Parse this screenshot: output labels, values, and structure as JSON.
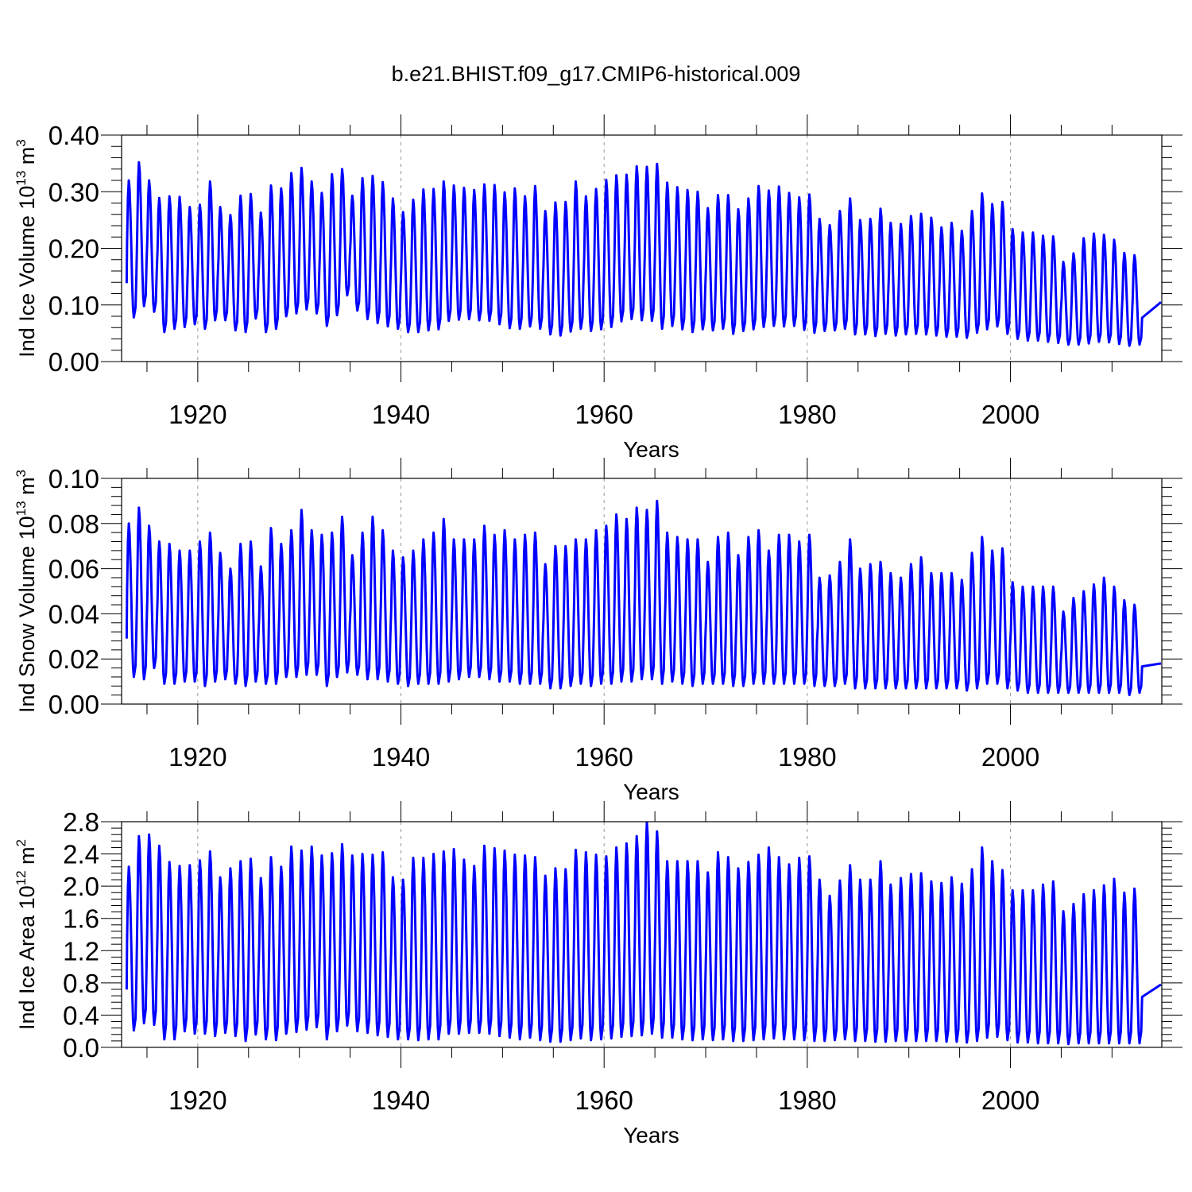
{
  "title": "b.e21.BHIST.f09_g17.CMIP6-historical.009",
  "series_color": "#0000ff",
  "chart_data": [
    {
      "type": "line",
      "title": "b.e21.BHIST.f09_g17.CMIP6-historical.009",
      "xlabel": "Years",
      "ylabel": {
        "prefix": "Ind Ice Volume 10",
        "exponent": "13",
        "unit": " m",
        "unit_exponent": "3"
      },
      "xlim": [
        1912.5,
        2014.9
      ],
      "ylim": [
        0.0,
        0.4
      ],
      "yticks": [
        "0.00",
        "0.10",
        "0.20",
        "0.30",
        "0.40"
      ],
      "xticks": [
        "1920",
        "1940",
        "1960",
        "1980",
        "2000"
      ],
      "xtick_values": [
        1920,
        1940,
        1960,
        1980,
        2000
      ],
      "grid": "dashed vertical at major x ticks",
      "series": [
        {
          "name": "Ind Ice Volume",
          "x_start": 1913,
          "step": "monthly, annual cycle (max ~Mar, min ~Sep)",
          "annual_max": [
            0.32,
            0.352,
            0.32,
            0.289,
            0.292,
            0.291,
            0.273,
            0.277,
            0.318,
            0.273,
            0.259,
            0.293,
            0.296,
            0.263,
            0.311,
            0.306,
            0.333,
            0.342,
            0.318,
            0.298,
            0.331,
            0.34,
            0.293,
            0.324,
            0.328,
            0.317,
            0.288,
            0.264,
            0.286,
            0.304,
            0.305,
            0.318,
            0.311,
            0.307,
            0.303,
            0.313,
            0.312,
            0.299,
            0.306,
            0.292,
            0.31,
            0.266,
            0.281,
            0.282,
            0.318,
            0.292,
            0.305,
            0.321,
            0.329,
            0.33,
            0.345,
            0.344,
            0.349,
            0.316,
            0.308,
            0.303,
            0.3,
            0.271,
            0.294,
            0.294,
            0.269,
            0.288,
            0.31,
            0.302,
            0.309,
            0.298,
            0.29,
            0.295,
            0.252,
            0.241,
            0.266,
            0.288,
            0.25,
            0.252,
            0.27,
            0.245,
            0.243,
            0.257,
            0.261,
            0.254,
            0.237,
            0.245,
            0.231,
            0.266,
            0.297,
            0.278,
            0.282,
            0.234,
            0.228,
            0.228,
            0.222,
            0.221,
            0.176,
            0.191,
            0.218,
            0.226,
            0.224,
            0.215,
            0.192,
            0.188
          ],
          "annual_min": [
            0.078,
            0.098,
            0.088,
            0.052,
            0.058,
            0.061,
            0.066,
            0.058,
            0.073,
            0.073,
            0.055,
            0.052,
            0.076,
            0.052,
            0.058,
            0.08,
            0.085,
            0.092,
            0.085,
            0.063,
            0.082,
            0.117,
            0.09,
            0.075,
            0.068,
            0.062,
            0.058,
            0.052,
            0.052,
            0.055,
            0.057,
            0.072,
            0.074,
            0.075,
            0.073,
            0.072,
            0.066,
            0.059,
            0.058,
            0.062,
            0.058,
            0.048,
            0.046,
            0.053,
            0.058,
            0.054,
            0.057,
            0.061,
            0.071,
            0.075,
            0.073,
            0.072,
            0.058,
            0.063,
            0.057,
            0.052,
            0.057,
            0.055,
            0.058,
            0.049,
            0.054,
            0.057,
            0.061,
            0.063,
            0.062,
            0.063,
            0.056,
            0.051,
            0.054,
            0.055,
            0.058,
            0.048,
            0.048,
            0.045,
            0.049,
            0.046,
            0.048,
            0.049,
            0.048,
            0.046,
            0.044,
            0.044,
            0.042,
            0.051,
            0.057,
            0.062,
            0.049,
            0.04,
            0.037,
            0.037,
            0.035,
            0.033,
            0.03,
            0.03,
            0.032,
            0.035,
            0.034,
            0.031,
            0.028,
            0.03
          ],
          "end_value": 0.105
        }
      ]
    },
    {
      "type": "line",
      "xlabel": "Years",
      "ylabel": {
        "prefix": "Ind Snow Volume 10",
        "exponent": "13",
        "unit": " m",
        "unit_exponent": "3"
      },
      "xlim": [
        1912.5,
        2014.9
      ],
      "ylim": [
        0.0,
        0.1
      ],
      "yticks": [
        "0.00",
        "0.02",
        "0.04",
        "0.06",
        "0.08",
        "0.10"
      ],
      "xticks": [
        "1920",
        "1940",
        "1960",
        "1980",
        "2000"
      ],
      "xtick_values": [
        1920,
        1940,
        1960,
        1980,
        2000
      ],
      "grid": "dashed vertical at major x ticks",
      "series": [
        {
          "name": "Ind Snow Volume",
          "x_start": 1913,
          "step": "monthly, annual cycle (max ~Mar, min ~Sep)",
          "annual_max": [
            0.08,
            0.087,
            0.079,
            0.072,
            0.071,
            0.068,
            0.068,
            0.072,
            0.076,
            0.067,
            0.06,
            0.071,
            0.072,
            0.061,
            0.078,
            0.071,
            0.077,
            0.086,
            0.077,
            0.075,
            0.076,
            0.083,
            0.066,
            0.076,
            0.083,
            0.077,
            0.068,
            0.065,
            0.068,
            0.073,
            0.076,
            0.082,
            0.073,
            0.073,
            0.073,
            0.079,
            0.075,
            0.077,
            0.073,
            0.075,
            0.076,
            0.062,
            0.07,
            0.07,
            0.073,
            0.073,
            0.077,
            0.079,
            0.084,
            0.082,
            0.087,
            0.086,
            0.09,
            0.076,
            0.074,
            0.073,
            0.073,
            0.063,
            0.074,
            0.076,
            0.066,
            0.074,
            0.077,
            0.068,
            0.075,
            0.075,
            0.072,
            0.075,
            0.056,
            0.057,
            0.063,
            0.073,
            0.06,
            0.062,
            0.063,
            0.058,
            0.056,
            0.062,
            0.065,
            0.058,
            0.058,
            0.058,
            0.055,
            0.067,
            0.074,
            0.068,
            0.069,
            0.054,
            0.052,
            0.052,
            0.052,
            0.052,
            0.041,
            0.047,
            0.05,
            0.053,
            0.056,
            0.052,
            0.046,
            0.044
          ],
          "annual_min": [
            0.012,
            0.011,
            0.016,
            0.009,
            0.009,
            0.01,
            0.01,
            0.008,
            0.01,
            0.011,
            0.009,
            0.008,
            0.01,
            0.009,
            0.009,
            0.012,
            0.012,
            0.013,
            0.013,
            0.008,
            0.012,
            0.014,
            0.013,
            0.011,
            0.011,
            0.01,
            0.009,
            0.008,
            0.009,
            0.009,
            0.009,
            0.01,
            0.011,
            0.012,
            0.012,
            0.011,
            0.01,
            0.01,
            0.009,
            0.009,
            0.009,
            0.007,
            0.007,
            0.008,
            0.009,
            0.008,
            0.009,
            0.009,
            0.01,
            0.01,
            0.011,
            0.011,
            0.009,
            0.01,
            0.009,
            0.008,
            0.009,
            0.009,
            0.009,
            0.008,
            0.008,
            0.009,
            0.009,
            0.009,
            0.009,
            0.009,
            0.009,
            0.008,
            0.008,
            0.008,
            0.009,
            0.007,
            0.007,
            0.007,
            0.007,
            0.007,
            0.007,
            0.007,
            0.007,
            0.007,
            0.007,
            0.007,
            0.006,
            0.007,
            0.009,
            0.009,
            0.007,
            0.006,
            0.005,
            0.005,
            0.005,
            0.005,
            0.005,
            0.005,
            0.005,
            0.005,
            0.005,
            0.005,
            0.004,
            0.005
          ],
          "end_value": 0.018
        }
      ]
    },
    {
      "type": "line",
      "xlabel": "Years",
      "ylabel": {
        "prefix": "Ind Ice Area 10",
        "exponent": "12",
        "unit": " m",
        "unit_exponent": "2"
      },
      "xlim": [
        1912.5,
        2014.9
      ],
      "ylim": [
        0.0,
        2.8
      ],
      "yticks": [
        "0.0",
        "0.4",
        "0.8",
        "1.2",
        "1.6",
        "2.0",
        "2.4",
        "2.8"
      ],
      "xticks": [
        "1920",
        "1940",
        "1960",
        "1980",
        "2000"
      ],
      "xtick_values": [
        1920,
        1940,
        1960,
        1980,
        2000
      ],
      "grid": "dashed vertical at major x ticks",
      "series": [
        {
          "name": "Ind Ice Area",
          "x_start": 1913,
          "step": "monthly, annual cycle (max ~Mar, min ~Sep)",
          "annual_max": [
            2.24,
            2.62,
            2.64,
            2.5,
            2.3,
            2.25,
            2.26,
            2.32,
            2.43,
            2.11,
            2.22,
            2.31,
            2.34,
            2.1,
            2.36,
            2.24,
            2.49,
            2.44,
            2.49,
            2.38,
            2.41,
            2.52,
            2.38,
            2.4,
            2.39,
            2.42,
            2.11,
            2.08,
            2.35,
            2.35,
            2.4,
            2.43,
            2.46,
            2.33,
            2.25,
            2.5,
            2.47,
            2.44,
            2.39,
            2.38,
            2.36,
            2.13,
            2.22,
            2.21,
            2.45,
            2.42,
            2.39,
            2.37,
            2.48,
            2.53,
            2.62,
            2.79,
            2.68,
            2.31,
            2.31,
            2.31,
            2.31,
            2.17,
            2.42,
            2.36,
            2.22,
            2.3,
            2.39,
            2.48,
            2.36,
            2.27,
            2.35,
            2.37,
            2.08,
            1.88,
            2.07,
            2.26,
            2.08,
            2.08,
            2.31,
            2.02,
            2.1,
            2.15,
            2.16,
            2.06,
            2.04,
            2.11,
            2.03,
            2.21,
            2.48,
            2.31,
            2.2,
            1.95,
            1.95,
            1.95,
            2.02,
            2.06,
            1.69,
            1.78,
            1.9,
            1.95,
            2.01,
            2.09,
            1.92,
            1.97
          ],
          "annual_min": [
            0.21,
            0.3,
            0.28,
            0.1,
            0.1,
            0.2,
            0.17,
            0.17,
            0.14,
            0.18,
            0.14,
            0.08,
            0.16,
            0.1,
            0.09,
            0.17,
            0.19,
            0.22,
            0.25,
            0.1,
            0.2,
            0.27,
            0.2,
            0.18,
            0.15,
            0.13,
            0.1,
            0.1,
            0.09,
            0.1,
            0.1,
            0.17,
            0.17,
            0.18,
            0.18,
            0.17,
            0.14,
            0.12,
            0.1,
            0.12,
            0.09,
            0.07,
            0.07,
            0.09,
            0.11,
            0.09,
            0.1,
            0.11,
            0.13,
            0.14,
            0.15,
            0.17,
            0.12,
            0.12,
            0.1,
            0.09,
            0.1,
            0.09,
            0.1,
            0.08,
            0.08,
            0.09,
            0.1,
            0.11,
            0.1,
            0.1,
            0.09,
            0.08,
            0.08,
            0.09,
            0.1,
            0.08,
            0.08,
            0.07,
            0.07,
            0.08,
            0.08,
            0.08,
            0.08,
            0.08,
            0.07,
            0.07,
            0.06,
            0.08,
            0.12,
            0.13,
            0.09,
            0.06,
            0.06,
            0.05,
            0.05,
            0.05,
            0.04,
            0.05,
            0.05,
            0.05,
            0.05,
            0.05,
            0.05,
            0.05
          ],
          "end_value": 0.78
        }
      ]
    }
  ]
}
